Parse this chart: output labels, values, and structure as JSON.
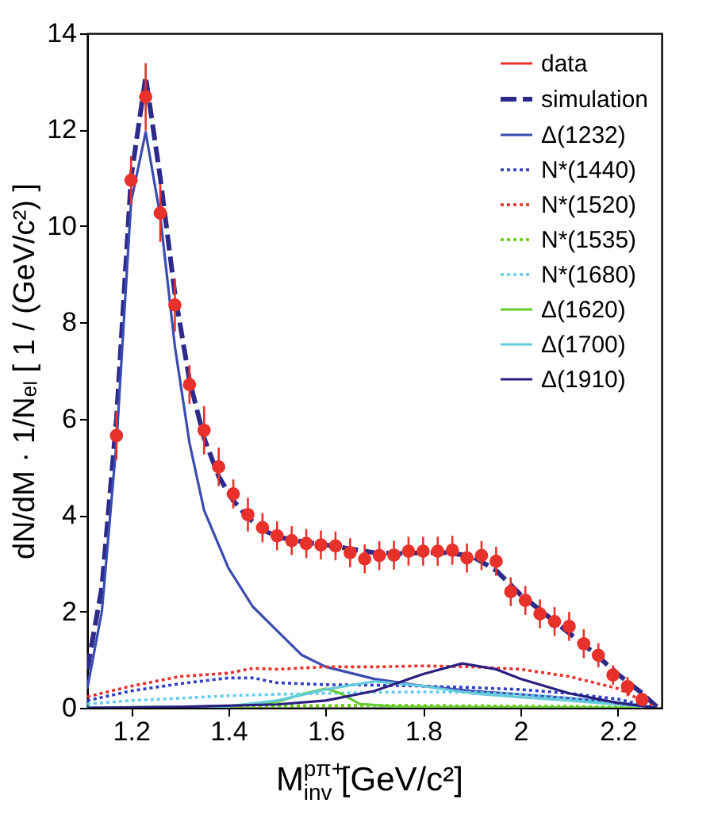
{
  "chart_data": {
    "type": "line",
    "xlabel": "M$^{pπ+}$$_{inv}$[GeV/c²]",
    "ylabel": "dN/dM · 1/Nₑₗ [ 1 / (GeV/c²) ]",
    "xlim": [
      1.11,
      2.29
    ],
    "ylim": [
      0,
      14
    ],
    "xticks": [
      1.2,
      1.4,
      1.6,
      1.8,
      {
        "value": 2,
        "label": "2"
      },
      2.2
    ],
    "yticks": [
      0,
      2,
      4,
      6,
      8,
      10,
      12,
      14
    ],
    "legend": "top right",
    "series": [
      {
        "name": "data",
        "type": "scatter",
        "marker": "circle",
        "color": "#e8312a",
        "x": [
          1.17,
          1.2,
          1.23,
          1.26,
          1.29,
          1.32,
          1.35,
          1.38,
          1.41,
          1.44,
          1.47,
          1.5,
          1.53,
          1.56,
          1.59,
          1.62,
          1.65,
          1.68,
          1.71,
          1.74,
          1.77,
          1.8,
          1.83,
          1.86,
          1.89,
          1.92,
          1.95,
          1.98,
          2.01,
          2.04,
          2.07,
          2.1,
          2.13,
          2.16,
          2.19,
          2.22,
          2.25
        ],
        "values": [
          5.65,
          10.95,
          12.68,
          10.27,
          8.36,
          6.71,
          5.76,
          5.0,
          4.44,
          4.01,
          3.74,
          3.57,
          3.47,
          3.41,
          3.38,
          3.36,
          3.22,
          3.09,
          3.16,
          3.17,
          3.25,
          3.25,
          3.25,
          3.27,
          3.11,
          3.16,
          3.04,
          2.41,
          2.23,
          1.95,
          1.79,
          1.69,
          1.33,
          1.09,
          0.68,
          0.44,
          0.17
        ],
        "errors": [
          0.5,
          0.5,
          0.7,
          0.6,
          0.55,
          0.4,
          0.5,
          0.4,
          0.3,
          0.35,
          0.3,
          0.3,
          0.3,
          0.3,
          0.3,
          0.3,
          0.3,
          0.3,
          0.3,
          0.3,
          0.3,
          0.3,
          0.3,
          0.3,
          0.3,
          0.3,
          0.3,
          0.3,
          0.3,
          0.3,
          0.3,
          0.3,
          0.3,
          0.25,
          0.2,
          0.2,
          0.1
        ]
      },
      {
        "name": "simulation",
        "line_style": "dashed",
        "color": "#2e2a8c",
        "x": [
          1.11,
          1.14,
          1.17,
          1.2,
          1.23,
          1.26,
          1.29,
          1.32,
          1.35,
          1.38,
          1.41,
          1.44,
          1.47,
          1.5,
          1.55,
          1.6,
          1.65,
          1.7,
          1.75,
          1.8,
          1.85,
          1.9,
          1.95,
          2.0,
          2.05,
          2.1,
          2.15,
          2.2,
          2.25,
          2.28
        ],
        "values": [
          0.8,
          2.5,
          6,
          11,
          13.1,
          11,
          8.6,
          6.8,
          5.6,
          4.8,
          4.3,
          3.95,
          3.7,
          3.55,
          3.45,
          3.38,
          3.3,
          3.22,
          3.2,
          3.22,
          3.22,
          3.15,
          2.85,
          2.35,
          1.95,
          1.55,
          1.15,
          0.7,
          0.3,
          0.02
        ]
      },
      {
        "name": "Δ(1232)",
        "line_style": "solid",
        "color": "#3b4cb0",
        "x": [
          1.11,
          1.14,
          1.17,
          1.2,
          1.23,
          1.26,
          1.29,
          1.32,
          1.35,
          1.4,
          1.45,
          1.5,
          1.55,
          1.6,
          1.7,
          1.8,
          1.9,
          2.0,
          2.1,
          2.2,
          2.28
        ],
        "values": [
          0.4,
          2,
          5.5,
          10.5,
          11.95,
          10.2,
          7.5,
          5.5,
          4.1,
          2.9,
          2.1,
          1.6,
          1.1,
          0.85,
          0.6,
          0.45,
          0.35,
          0.28,
          0.2,
          0.1,
          0
        ]
      },
      {
        "name": "N*(1440)",
        "line_style": "dotted",
        "color": "#3040c0",
        "x": [
          1.11,
          1.2,
          1.3,
          1.4,
          1.45,
          1.5,
          1.6,
          1.7,
          1.8,
          1.9,
          2.0,
          2.1,
          2.2,
          2.28
        ],
        "values": [
          0.15,
          0.35,
          0.5,
          0.62,
          0.62,
          0.52,
          0.48,
          0.47,
          0.45,
          0.42,
          0.38,
          0.3,
          0.18,
          0
        ]
      },
      {
        "name": "N*(1520)",
        "line_style": "dotted",
        "color": "#e8312a",
        "x": [
          1.11,
          1.2,
          1.3,
          1.4,
          1.45,
          1.5,
          1.6,
          1.7,
          1.8,
          1.9,
          2.0,
          2.1,
          2.2,
          2.28
        ],
        "values": [
          0.23,
          0.45,
          0.65,
          0.72,
          0.82,
          0.8,
          0.85,
          0.85,
          0.87,
          0.85,
          0.8,
          0.65,
          0.4,
          0
        ]
      },
      {
        "name": "N*(1535)",
        "line_style": "dotted",
        "color": "#66cc00",
        "x": [
          1.11,
          1.3,
          1.5,
          1.7,
          1.9,
          2.1,
          2.28
        ],
        "values": [
          0,
          0.02,
          0.04,
          0.05,
          0.04,
          0.03,
          0
        ]
      },
      {
        "name": "N*(1680)",
        "line_style": "dotted",
        "color": "#66ccee",
        "x": [
          1.11,
          1.2,
          1.3,
          1.4,
          1.5,
          1.6,
          1.7,
          1.8,
          1.9,
          2.0,
          2.1,
          2.2,
          2.28
        ],
        "values": [
          0.08,
          0.15,
          0.2,
          0.25,
          0.28,
          0.3,
          0.32,
          0.33,
          0.32,
          0.28,
          0.2,
          0.12,
          0
        ]
      },
      {
        "name": "Δ(1620)",
        "line_style": "solid",
        "color": "#66cc33",
        "x": [
          1.11,
          1.4,
          1.5,
          1.55,
          1.6,
          1.63,
          1.67,
          1.75,
          2.28
        ],
        "values": [
          0,
          0.03,
          0.12,
          0.28,
          0.4,
          0.3,
          0.08,
          0.02,
          0
        ]
      },
      {
        "name": "Δ(1700)",
        "line_style": "solid",
        "color": "#66ccdd",
        "x": [
          1.11,
          1.4,
          1.5,
          1.6,
          1.7,
          1.8,
          1.9,
          2.0,
          2.1,
          2.2,
          2.28
        ],
        "values": [
          0,
          0.03,
          0.15,
          0.38,
          0.55,
          0.45,
          0.3,
          0.22,
          0.15,
          0.07,
          0
        ]
      },
      {
        "name": "Δ(1910)",
        "line_style": "solid",
        "color": "#2a1f80",
        "x": [
          1.11,
          1.3,
          1.5,
          1.6,
          1.7,
          1.8,
          1.88,
          1.95,
          2.0,
          2.1,
          2.2,
          2.28
        ],
        "values": [
          0,
          0.02,
          0.07,
          0.15,
          0.35,
          0.7,
          0.92,
          0.8,
          0.6,
          0.3,
          0.1,
          0
        ]
      }
    ]
  }
}
